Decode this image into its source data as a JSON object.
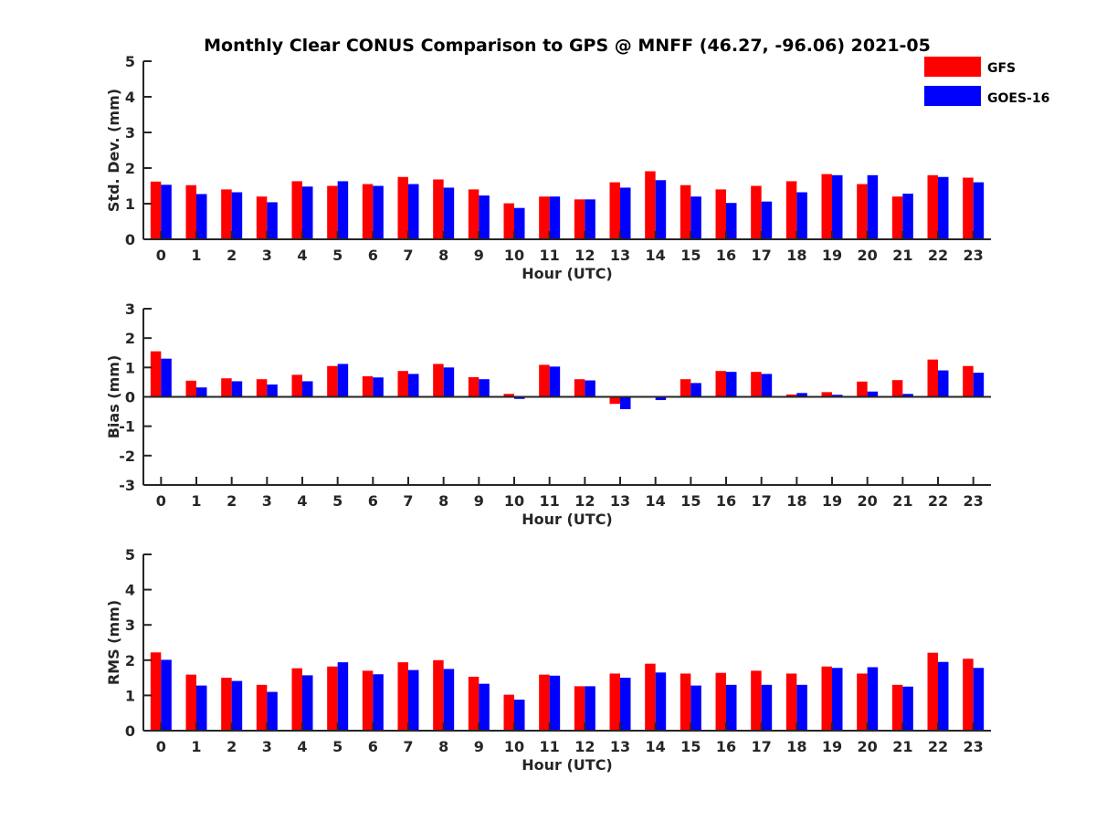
{
  "colors": {
    "GFS": "#ff0000",
    "GOES-16": "#0000ff",
    "axis": "#262626"
  },
  "chart_data": {
    "title": "Monthly Clear CONUS Comparison to GPS @ MNFF (46.27, -96.06) 2021-05",
    "type": "bar",
    "legend": {
      "placement": "top-right",
      "entries": [
        "GFS",
        "GOES-16"
      ]
    },
    "categories": [
      "0",
      "1",
      "2",
      "3",
      "4",
      "5",
      "6",
      "7",
      "8",
      "9",
      "10",
      "11",
      "12",
      "13",
      "14",
      "15",
      "16",
      "17",
      "18",
      "19",
      "20",
      "21",
      "22",
      "23"
    ],
    "panels": [
      {
        "id": "std",
        "xlabel": "Hour (UTC)",
        "ylabel": "Std. Dev. (mm)",
        "ylim": [
          0,
          5
        ],
        "yticks": [
          "0",
          "1",
          "2",
          "3",
          "4",
          "5"
        ],
        "grid": false,
        "series": [
          {
            "name": "GFS",
            "values": [
              1.62,
              1.52,
              1.4,
              1.2,
              1.63,
              1.5,
              1.55,
              1.75,
              1.68,
              1.4,
              1.01,
              1.2,
              1.12,
              1.6,
              1.91,
              1.52,
              1.4,
              1.5,
              1.63,
              1.83,
              1.55,
              1.2,
              1.8,
              1.73
            ]
          },
          {
            "name": "GOES-16",
            "values": [
              1.53,
              1.27,
              1.32,
              1.04,
              1.48,
              1.63,
              1.5,
              1.55,
              1.45,
              1.23,
              0.88,
              1.2,
              1.12,
              1.45,
              1.66,
              1.2,
              1.02,
              1.06,
              1.32,
              1.8,
              1.8,
              1.28,
              1.75,
              1.6
            ]
          }
        ]
      },
      {
        "id": "bias",
        "xlabel": "Hour (UTC)",
        "ylabel": "Bias (mm)",
        "ylim": [
          -3,
          3
        ],
        "yticks": [
          "-3",
          "-2",
          "-1",
          "0",
          "1",
          "2",
          "3"
        ],
        "grid": false,
        "series": [
          {
            "name": "GFS",
            "values": [
              1.55,
              0.55,
              0.63,
              0.6,
              0.75,
              1.05,
              0.7,
              0.88,
              1.12,
              0.67,
              0.1,
              1.09,
              0.6,
              -0.24,
              0.0,
              0.6,
              0.88,
              0.85,
              0.08,
              0.16,
              0.52,
              0.57,
              1.27,
              1.05
            ]
          },
          {
            "name": "GOES-16",
            "values": [
              1.3,
              0.32,
              0.53,
              0.42,
              0.53,
              1.12,
              0.66,
              0.78,
              1.0,
              0.6,
              -0.07,
              1.03,
              0.56,
              -0.42,
              -0.11,
              0.47,
              0.85,
              0.78,
              0.13,
              0.07,
              0.18,
              0.1,
              0.9,
              0.82
            ]
          }
        ]
      },
      {
        "id": "rms",
        "xlabel": "Hour (UTC)",
        "ylabel": "RMS (mm)",
        "ylim": [
          0,
          5
        ],
        "yticks": [
          "0",
          "1",
          "2",
          "3",
          "4",
          "5"
        ],
        "grid": false,
        "series": [
          {
            "name": "GFS",
            "values": [
              2.22,
              1.59,
              1.5,
              1.3,
              1.77,
              1.82,
              1.7,
              1.94,
              2.0,
              1.53,
              1.02,
              1.59,
              1.26,
              1.62,
              1.9,
              1.62,
              1.64,
              1.7,
              1.62,
              1.82,
              1.62,
              1.3,
              2.21,
              2.04
            ]
          },
          {
            "name": "GOES-16",
            "values": [
              2.01,
              1.28,
              1.41,
              1.1,
              1.57,
              1.94,
              1.6,
              1.72,
              1.75,
              1.33,
              0.88,
              1.56,
              1.26,
              1.5,
              1.65,
              1.28,
              1.3,
              1.3,
              1.3,
              1.78,
              1.8,
              1.25,
              1.95,
              1.78
            ]
          }
        ]
      }
    ]
  }
}
